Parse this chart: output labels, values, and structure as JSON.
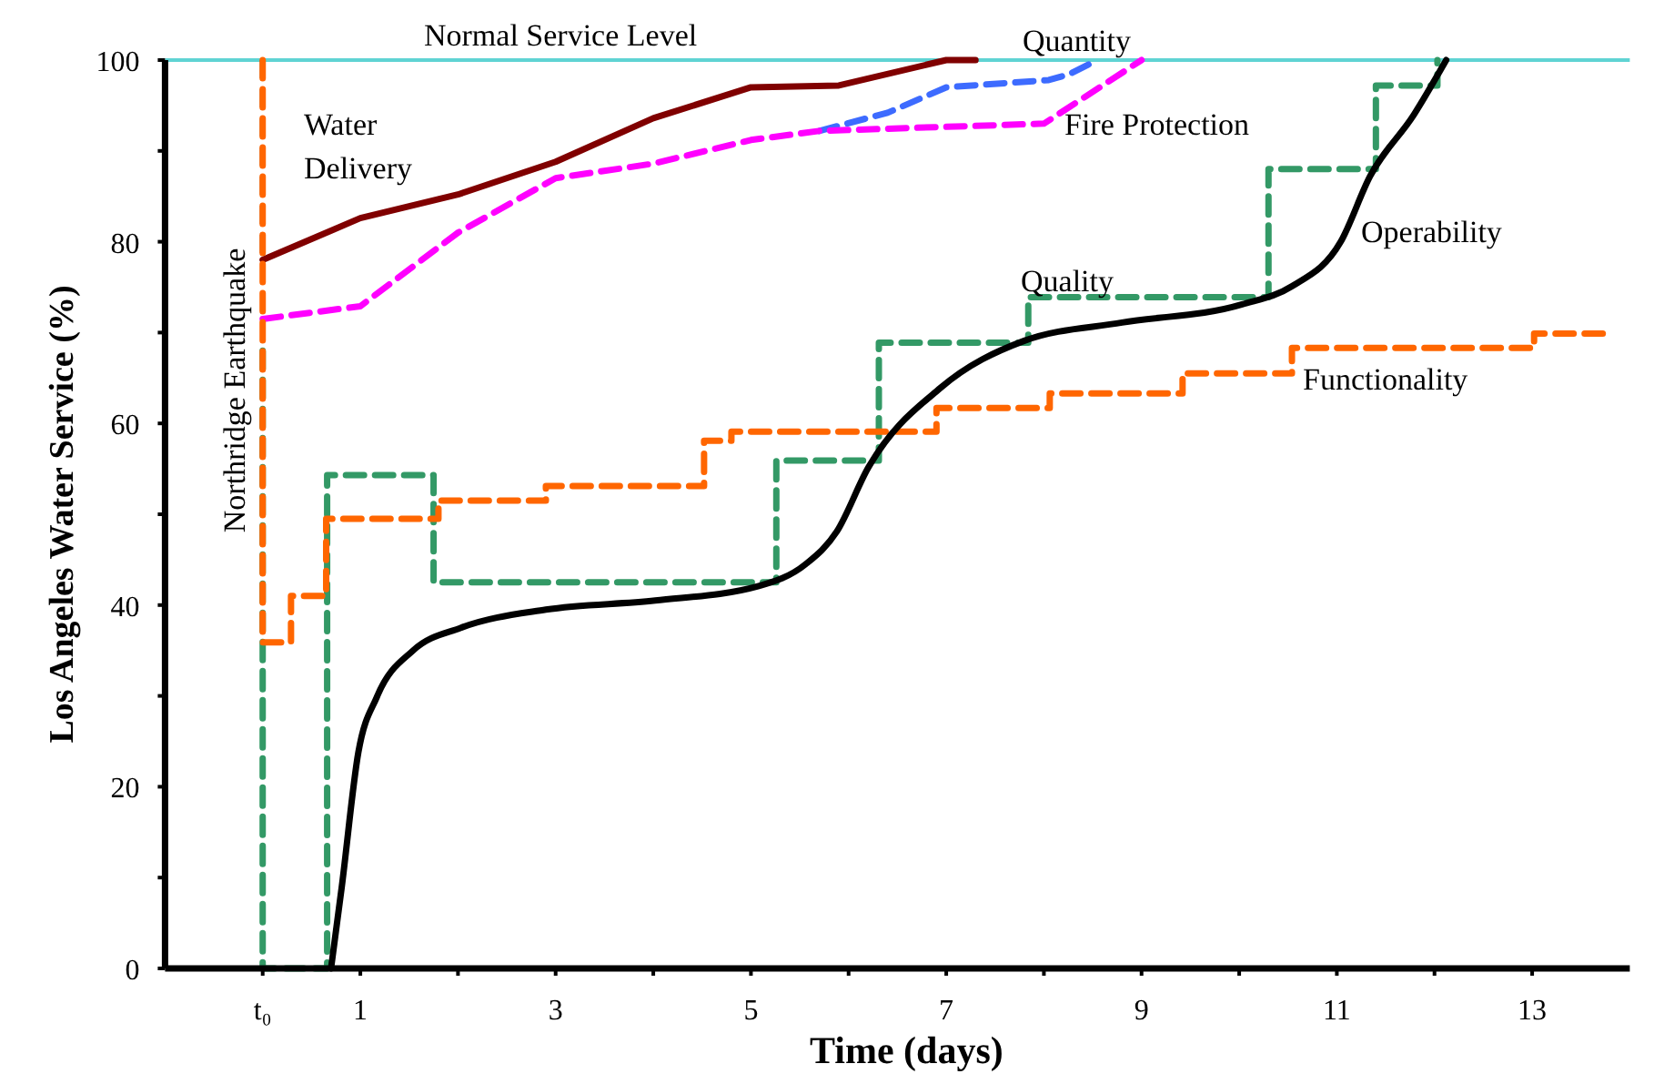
{
  "chart_data": {
    "type": "line",
    "xlabel": "Time (days)",
    "ylabel": "Los Angeles Water Service (%)",
    "xlim": [
      -1,
      14
    ],
    "ylim": [
      0,
      100
    ],
    "xticks": [
      {
        "value": 0,
        "label": "t₀"
      },
      1,
      {
        "value": 2,
        "label": null
      },
      3,
      {
        "value": 4,
        "label": null
      },
      5,
      {
        "value": 6,
        "label": null
      },
      7,
      {
        "value": 8,
        "label": null
      },
      9,
      {
        "value": 10,
        "label": null
      },
      11,
      {
        "value": 12,
        "label": null
      },
      13
    ],
    "yticks": [
      0,
      {
        "value": 10,
        "label": null
      },
      20,
      {
        "value": 30,
        "label": null
      },
      40,
      {
        "value": 50,
        "label": null
      },
      60,
      {
        "value": 70,
        "label": null
      },
      80,
      {
        "value": 90,
        "label": null
      },
      100
    ],
    "grid": false,
    "series": [
      {
        "name": "Water Delivery",
        "type": "line",
        "color": "#800000",
        "line_style": "solid",
        "x": [
          0,
          1,
          2,
          3,
          4,
          5,
          5.9,
          7,
          7.3
        ],
        "values": [
          78,
          82.6,
          85.2,
          88.8,
          93.6,
          97,
          97.2,
          100,
          100
        ]
      },
      {
        "name": "Quantity",
        "type": "line",
        "color": "#3d6bff",
        "line_style": "dashed",
        "x": [
          5.7,
          6.4,
          7,
          8.05,
          8.25,
          8.55
        ],
        "values": [
          92.2,
          94.2,
          97,
          97.8,
          98.4,
          100
        ]
      },
      {
        "name": "Fire Protection",
        "type": "line",
        "color": "#ff00ff",
        "line_style": "dashed",
        "x": [
          0,
          1,
          2,
          3,
          4,
          5,
          5.7,
          8,
          9
        ],
        "values": [
          71.5,
          72.9,
          81,
          87,
          88.6,
          91.2,
          92.2,
          93,
          100
        ]
      },
      {
        "name": "Quality",
        "type": "step",
        "color": "#339966",
        "line_style": "dashed",
        "x": [
          0,
          0,
          0.66,
          1.75,
          5.26,
          6.31,
          7.84,
          10.3,
          11.4,
          12.03
        ],
        "values": [
          68,
          0,
          54.3,
          42.5,
          55.9,
          68.9,
          73.9,
          88,
          97.2,
          100
        ]
      },
      {
        "name": "Functionality",
        "type": "step",
        "color": "#ff6600",
        "line_style": "dashed",
        "x": [
          0,
          0,
          0.29,
          0.65,
          1.8,
          2.9,
          4.52,
          4.8,
          6.9,
          8.06,
          9.42,
          10.54,
          13.02,
          13.8
        ],
        "values": [
          100,
          35.9,
          41,
          49.5,
          51.5,
          53.1,
          58.1,
          59.1,
          61.7,
          63.3,
          65.5,
          68.3,
          69.9,
          69.9
        ]
      },
      {
        "name": "Operability",
        "type": "line",
        "color": "#000000",
        "line_style": "solid",
        "x": [
          0.7,
          0.81,
          0.98,
          1.17,
          1.54,
          2.03,
          2.9,
          4.02,
          5.08,
          5.56,
          5.88,
          6.2,
          6.94,
          7.8,
          8.8,
          10.03,
          10.54,
          11.04,
          11.34,
          11.79,
          12.12
        ],
        "values": [
          0,
          9,
          23.8,
          29.9,
          35,
          37.5,
          39.5,
          40.5,
          42.1,
          44.5,
          48.1,
          55.1,
          63.9,
          69.1,
          71.1,
          73.1,
          75.1,
          80,
          87.2,
          94,
          100
        ]
      }
    ],
    "ref_lines": [
      {
        "axis": "y",
        "value": 100,
        "label": "Normal Service Level",
        "color": "#5fd3d3",
        "line_style": "solid"
      },
      {
        "axis": "x",
        "value": 0,
        "label": "Northridge Earthquake",
        "color": "#000000",
        "line_style": "dashed"
      }
    ]
  }
}
